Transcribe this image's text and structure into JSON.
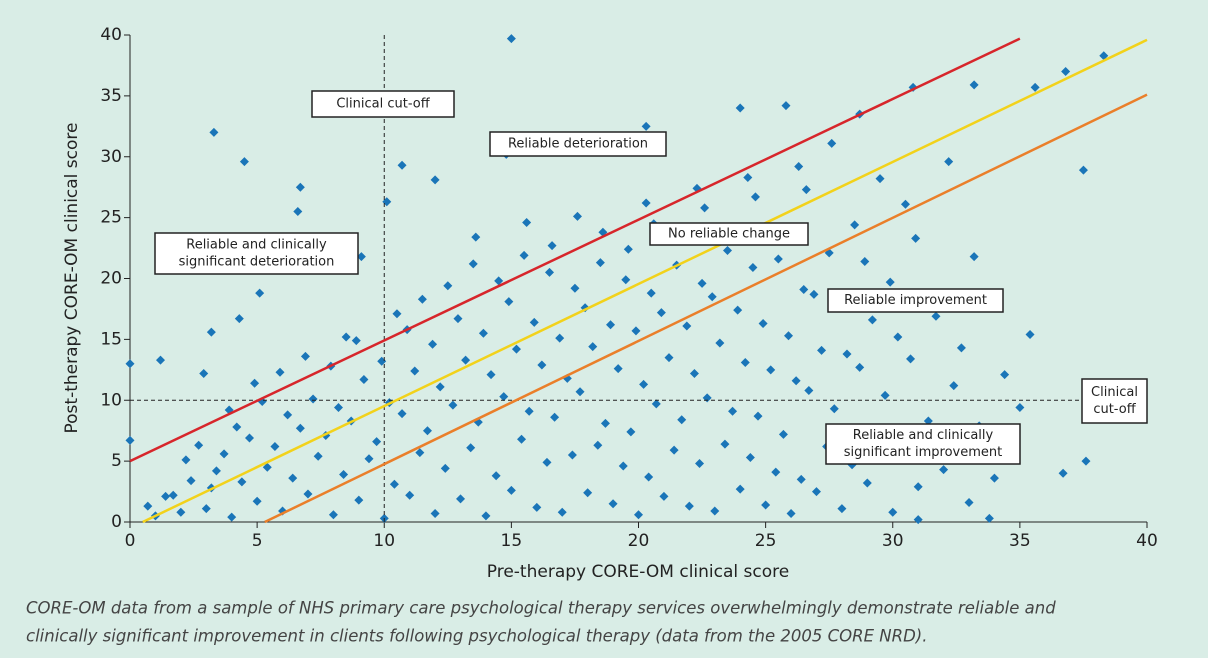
{
  "chart_data": {
    "type": "scatter",
    "x_label": "Pre-therapy CORE-OM clinical score",
    "y_label": "Post-therapy CORE-OM clinical score",
    "caption": [
      "CORE-OM data from a sample of NHS primary care psychological therapy services overwhelmingly demonstrate reliable and",
      "clinically significant improvement in clients following psychological therapy (data from the 2005 CORE NRD)."
    ],
    "xlim": [
      0,
      40
    ],
    "ylim": [
      0,
      40
    ],
    "xticks": [
      0,
      5,
      10,
      15,
      20,
      25,
      30,
      35,
      40
    ],
    "yticks": [
      0,
      5,
      10,
      15,
      20,
      25,
      30,
      35,
      40
    ],
    "color": "#1a75b8",
    "cutoff_x": 10,
    "cutoff_y": 10,
    "reference_lines": [
      {
        "color": "#d7262b",
        "x": [
          0,
          35
        ],
        "y": [
          5,
          39.7
        ]
      },
      {
        "color": "#f2d21b",
        "x": [
          0.5,
          40
        ],
        "y": [
          0,
          39.6
        ]
      },
      {
        "color": "#ea7f2a",
        "x": [
          5.3,
          40
        ],
        "y": [
          0,
          35.1
        ]
      }
    ],
    "annotations": [
      [
        "Clinical cut-off"
      ],
      [
        "Reliable deterioration"
      ],
      [
        "Reliable and clinically",
        "significant deterioration"
      ],
      [
        "No reliable change"
      ],
      [
        "Reliable improvement"
      ],
      [
        "Clinical",
        "cut-off"
      ],
      [
        "Reliable and clinically",
        "significant improvement"
      ]
    ],
    "points": [
      [
        15,
        39.7
      ],
      [
        3.3,
        32
      ],
      [
        4.5,
        29.6
      ],
      [
        6.7,
        27.5
      ],
      [
        6.6,
        25.5
      ],
      [
        10.1,
        26.3
      ],
      [
        10.7,
        29.3
      ],
      [
        14.8,
        30.2
      ],
      [
        37.5,
        28.9
      ],
      [
        38.3,
        38.3
      ],
      [
        36.8,
        37
      ],
      [
        35.6,
        35.7
      ],
      [
        33.8,
        0.3
      ],
      [
        37.6,
        5
      ],
      [
        36.7,
        4
      ],
      [
        31,
        0.2
      ],
      [
        0,
        13
      ],
      [
        0,
        6.7
      ],
      [
        1.2,
        13.3
      ],
      [
        4.3,
        16.7
      ],
      [
        3.2,
        15.6
      ],
      [
        5.1,
        18.8
      ],
      [
        2.9,
        12.2
      ],
      [
        7.6,
        22.2
      ],
      [
        9.1,
        21.8
      ],
      [
        12,
        28.1
      ],
      [
        20.3,
        32.5
      ],
      [
        24,
        34
      ],
      [
        25.8,
        34.2
      ],
      [
        30.8,
        35.7
      ],
      [
        33.2,
        35.9
      ],
      [
        28.7,
        33.5
      ],
      [
        1,
        0.5
      ],
      [
        1.4,
        2.1
      ],
      [
        0.7,
        1.3
      ],
      [
        2,
        0.8
      ],
      [
        2.4,
        3.4
      ],
      [
        1.7,
        2.2
      ],
      [
        2.2,
        5.1
      ],
      [
        3,
        1.1
      ],
      [
        3.4,
        4.2
      ],
      [
        2.7,
        6.3
      ],
      [
        3.2,
        2.8
      ],
      [
        4,
        0.4
      ],
      [
        4.4,
        3.3
      ],
      [
        3.7,
        5.6
      ],
      [
        4.2,
        7.8
      ],
      [
        3.9,
        9.2
      ],
      [
        5,
        1.7
      ],
      [
        5.4,
        4.5
      ],
      [
        4.7,
        6.9
      ],
      [
        5.2,
        9.9
      ],
      [
        4.9,
        11.4
      ],
      [
        6,
        0.9
      ],
      [
        6.4,
        3.6
      ],
      [
        5.7,
        6.2
      ],
      [
        6.2,
        8.8
      ],
      [
        5.9,
        12.3
      ],
      [
        7,
        2.3
      ],
      [
        7.4,
        5.4
      ],
      [
        6.7,
        7.7
      ],
      [
        7.2,
        10.1
      ],
      [
        6.9,
        13.6
      ],
      [
        8,
        0.6
      ],
      [
        8.4,
        3.9
      ],
      [
        7.7,
        7.1
      ],
      [
        8.2,
        9.4
      ],
      [
        7.9,
        12.8
      ],
      [
        8.5,
        15.2
      ],
      [
        9,
        1.8
      ],
      [
        9.4,
        5.2
      ],
      [
        8.7,
        8.3
      ],
      [
        9.2,
        11.7
      ],
      [
        8.9,
        14.9
      ],
      [
        10,
        0.3
      ],
      [
        10.4,
        3.1
      ],
      [
        9.7,
        6.6
      ],
      [
        10.2,
        9.8
      ],
      [
        9.9,
        13.2
      ],
      [
        10.5,
        17.1
      ],
      [
        11,
        2.2
      ],
      [
        11.4,
        5.7
      ],
      [
        10.7,
        8.9
      ],
      [
        11.2,
        12.4
      ],
      [
        10.9,
        15.8
      ],
      [
        11.5,
        18.3
      ],
      [
        12,
        0.7
      ],
      [
        12.4,
        4.4
      ],
      [
        11.7,
        7.5
      ],
      [
        12.2,
        11.1
      ],
      [
        11.9,
        14.6
      ],
      [
        12.5,
        19.4
      ],
      [
        13,
        1.9
      ],
      [
        13.4,
        6.1
      ],
      [
        12.7,
        9.6
      ],
      [
        13.2,
        13.3
      ],
      [
        12.9,
        16.7
      ],
      [
        13.5,
        21.2
      ],
      [
        14,
        0.5
      ],
      [
        14.4,
        3.8
      ],
      [
        13.7,
        8.2
      ],
      [
        14.2,
        12.1
      ],
      [
        13.9,
        15.5
      ],
      [
        14.5,
        19.8
      ],
      [
        13.6,
        23.4
      ],
      [
        15,
        2.6
      ],
      [
        15.4,
        6.8
      ],
      [
        14.7,
        10.3
      ],
      [
        15.2,
        14.2
      ],
      [
        14.9,
        18.1
      ],
      [
        15.5,
        21.9
      ],
      [
        16,
        1.2
      ],
      [
        16.4,
        4.9
      ],
      [
        15.7,
        9.1
      ],
      [
        16.2,
        12.9
      ],
      [
        15.9,
        16.4
      ],
      [
        16.5,
        20.5
      ],
      [
        15.6,
        24.6
      ],
      [
        17,
        0.8
      ],
      [
        17.4,
        5.5
      ],
      [
        16.7,
        8.6
      ],
      [
        17.2,
        11.8
      ],
      [
        16.9,
        15.1
      ],
      [
        17.5,
        19.2
      ],
      [
        16.6,
        22.7
      ],
      [
        18,
        2.4
      ],
      [
        18.4,
        6.3
      ],
      [
        17.7,
        10.7
      ],
      [
        18.2,
        14.4
      ],
      [
        17.9,
        17.6
      ],
      [
        18.5,
        21.3
      ],
      [
        17.6,
        25.1
      ],
      [
        19,
        1.5
      ],
      [
        19.4,
        4.6
      ],
      [
        18.7,
        8.1
      ],
      [
        19.2,
        12.6
      ],
      [
        18.9,
        16.2
      ],
      [
        19.5,
        19.9
      ],
      [
        18.6,
        23.8
      ],
      [
        20,
        0.6
      ],
      [
        20.4,
        3.7
      ],
      [
        19.7,
        7.4
      ],
      [
        20.2,
        11.3
      ],
      [
        19.9,
        15.7
      ],
      [
        20.5,
        18.8
      ],
      [
        19.6,
        22.4
      ],
      [
        20.3,
        26.2
      ],
      [
        21,
        2.1
      ],
      [
        21.4,
        5.9
      ],
      [
        20.7,
        9.7
      ],
      [
        21.2,
        13.5
      ],
      [
        20.9,
        17.2
      ],
      [
        21.5,
        21.1
      ],
      [
        20.6,
        24.5
      ],
      [
        22,
        1.3
      ],
      [
        22.4,
        4.8
      ],
      [
        21.7,
        8.4
      ],
      [
        22.2,
        12.2
      ],
      [
        21.9,
        16.1
      ],
      [
        22.5,
        19.6
      ],
      [
        21.6,
        23.1
      ],
      [
        22.3,
        27.4
      ],
      [
        23,
        0.9
      ],
      [
        23.4,
        6.4
      ],
      [
        22.7,
        10.2
      ],
      [
        23.2,
        14.7
      ],
      [
        22.9,
        18.5
      ],
      [
        23.5,
        22.3
      ],
      [
        22.6,
        25.8
      ],
      [
        24,
        2.7
      ],
      [
        24.4,
        5.3
      ],
      [
        23.7,
        9.1
      ],
      [
        24.2,
        13.1
      ],
      [
        23.9,
        17.4
      ],
      [
        24.5,
        20.9
      ],
      [
        23.6,
        24.2
      ],
      [
        24.3,
        28.3
      ],
      [
        25,
        1.4
      ],
      [
        25.4,
        4.1
      ],
      [
        24.7,
        8.7
      ],
      [
        25.2,
        12.5
      ],
      [
        24.9,
        16.3
      ],
      [
        25.5,
        21.6
      ],
      [
        24.6,
        26.7
      ],
      [
        26,
        0.7
      ],
      [
        26.4,
        3.5
      ],
      [
        25.7,
        7.2
      ],
      [
        26.2,
        11.6
      ],
      [
        25.9,
        15.3
      ],
      [
        26.5,
        19.1
      ],
      [
        25.6,
        23.6
      ],
      [
        26.3,
        29.2
      ],
      [
        27,
        2.5
      ],
      [
        27.4,
        6.2
      ],
      [
        26.7,
        10.8
      ],
      [
        27.2,
        14.1
      ],
      [
        26.9,
        18.7
      ],
      [
        27.5,
        22.1
      ],
      [
        26.6,
        27.3
      ],
      [
        28,
        1.1
      ],
      [
        28.4,
        4.7
      ],
      [
        27.7,
        9.3
      ],
      [
        28.2,
        13.8
      ],
      [
        27.9,
        17.9
      ],
      [
        28.5,
        24.4
      ],
      [
        27.6,
        31.1
      ],
      [
        29,
        3.2
      ],
      [
        29.4,
        7.6
      ],
      [
        28.7,
        12.7
      ],
      [
        29.2,
        16.6
      ],
      [
        28.9,
        21.4
      ],
      [
        29.5,
        28.2
      ],
      [
        30,
        0.8
      ],
      [
        30.4,
        5.1
      ],
      [
        29.7,
        10.4
      ],
      [
        30.2,
        15.2
      ],
      [
        29.9,
        19.7
      ],
      [
        30.5,
        26.1
      ],
      [
        31,
        2.9
      ],
      [
        31.4,
        8.3
      ],
      [
        30.7,
        13.4
      ],
      [
        31.2,
        18.2
      ],
      [
        30.9,
        23.3
      ],
      [
        32,
        4.3
      ],
      [
        32.4,
        11.2
      ],
      [
        31.7,
        16.9
      ],
      [
        32.2,
        29.6
      ],
      [
        33,
        1.6
      ],
      [
        33.4,
        7.9
      ],
      [
        32.7,
        14.3
      ],
      [
        33.2,
        21.8
      ],
      [
        34,
        3.6
      ],
      [
        34.4,
        12.1
      ],
      [
        33.7,
        18.6
      ],
      [
        35,
        9.4
      ],
      [
        35.4,
        15.4
      ]
    ]
  }
}
